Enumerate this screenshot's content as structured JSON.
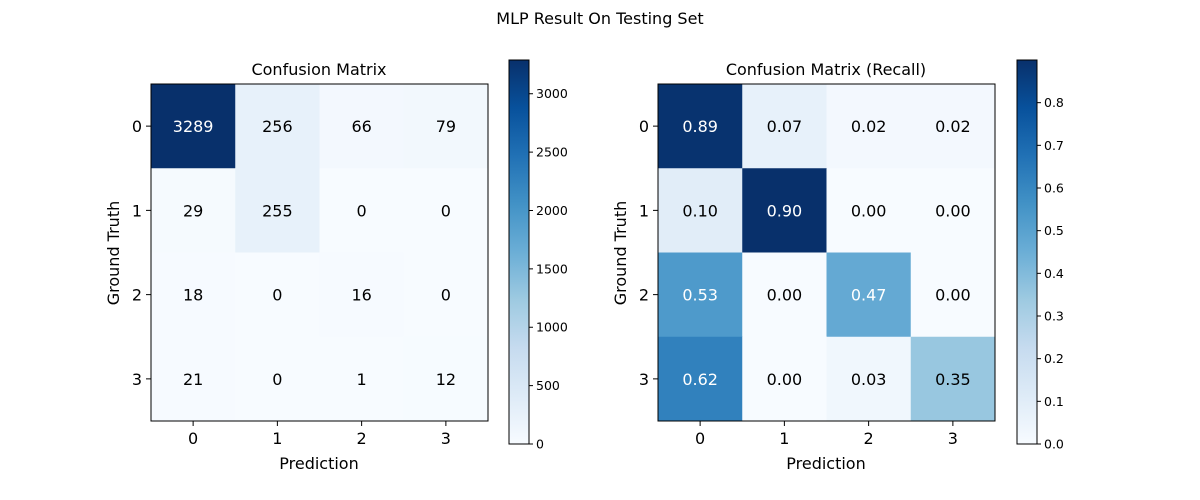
{
  "figure": {
    "suptitle": "MLP Result On Testing Set",
    "colormap": [
      "#f7fbff",
      "#deebf7",
      "#c6dbef",
      "#9ecae1",
      "#6baed6",
      "#4292c6",
      "#2171b5",
      "#08519c",
      "#08306b"
    ]
  },
  "chart_data": [
    {
      "type": "heatmap",
      "title": "Confusion Matrix",
      "xlabel": "Prediction",
      "ylabel": "Ground Truth",
      "x_categories": [
        "0",
        "1",
        "2",
        "3"
      ],
      "y_categories": [
        "0",
        "1",
        "2",
        "3"
      ],
      "values": [
        [
          3289,
          256,
          66,
          79
        ],
        [
          29,
          255,
          0,
          0
        ],
        [
          18,
          0,
          16,
          0
        ],
        [
          21,
          0,
          1,
          12
        ]
      ],
      "value_labels": [
        [
          "3289",
          "256",
          "66",
          "79"
        ],
        [
          "29",
          "255",
          "0",
          "0"
        ],
        [
          "18",
          "0",
          "16",
          "0"
        ],
        [
          "21",
          "0",
          "1",
          "12"
        ]
      ],
      "vmin": 0,
      "vmax": 3289,
      "colorbar_ticks": [
        0,
        500,
        1000,
        1500,
        2000,
        2500,
        3000
      ],
      "colorbar_tick_labels": [
        "0",
        "500",
        "1000",
        "1500",
        "2000",
        "2500",
        "3000"
      ],
      "cmap": "Blues"
    },
    {
      "type": "heatmap",
      "title": "Confusion Matrix (Recall)",
      "xlabel": "Prediction",
      "ylabel": "Ground Truth",
      "x_categories": [
        "0",
        "1",
        "2",
        "3"
      ],
      "y_categories": [
        "0",
        "1",
        "2",
        "3"
      ],
      "values": [
        [
          0.89,
          0.07,
          0.02,
          0.02
        ],
        [
          0.1,
          0.9,
          0.0,
          0.0
        ],
        [
          0.53,
          0.0,
          0.47,
          0.0
        ],
        [
          0.62,
          0.0,
          0.03,
          0.35
        ]
      ],
      "value_labels": [
        [
          "0.89",
          "0.07",
          "0.02",
          "0.02"
        ],
        [
          "0.10",
          "0.90",
          "0.00",
          "0.00"
        ],
        [
          "0.53",
          "0.00",
          "0.47",
          "0.00"
        ],
        [
          "0.62",
          "0.00",
          "0.03",
          "0.35"
        ]
      ],
      "vmin": 0,
      "vmax": 0.9,
      "colorbar_ticks": [
        0,
        0.1,
        0.2,
        0.3,
        0.4,
        0.5,
        0.6,
        0.7,
        0.8
      ],
      "colorbar_tick_labels": [
        "0.0",
        "0.1",
        "0.2",
        "0.3",
        "0.4",
        "0.5",
        "0.6",
        "0.7",
        "0.8"
      ],
      "cmap": "Blues"
    }
  ]
}
